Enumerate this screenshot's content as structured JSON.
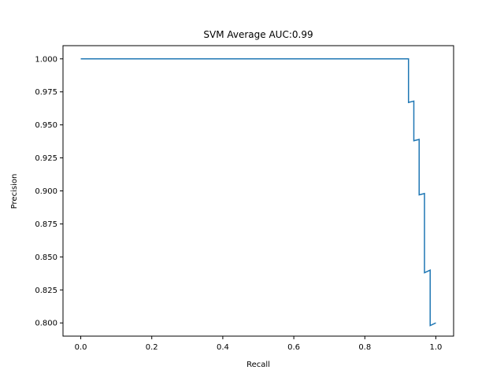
{
  "chart_data": {
    "type": "line",
    "title": "SVM Average AUC:0.99",
    "xlabel": "Recall",
    "ylabel": "Precision",
    "xlim": [
      -0.05,
      1.05
    ],
    "ylim": [
      0.79,
      1.01
    ],
    "x_ticks": [
      0.0,
      0.2,
      0.4,
      0.6,
      0.8,
      1.0
    ],
    "y_ticks": [
      0.8,
      0.825,
      0.85,
      0.875,
      0.9,
      0.925,
      0.95,
      0.975,
      1.0
    ],
    "x_tick_labels": [
      "0.0",
      "0.2",
      "0.4",
      "0.6",
      "0.8",
      "1.0"
    ],
    "y_tick_labels": [
      "0.800",
      "0.825",
      "0.850",
      "0.875",
      "0.900",
      "0.925",
      "0.950",
      "0.975",
      "1.000"
    ],
    "grid": false,
    "legend": null,
    "line_color": "#1f77b4",
    "series": [
      {
        "x": [
          0.0,
          0.923,
          0.923,
          0.938,
          0.938,
          0.953,
          0.953,
          0.968,
          0.968,
          0.984,
          0.984,
          1.0
        ],
        "y": [
          1.0,
          1.0,
          0.967,
          0.968,
          0.938,
          0.939,
          0.897,
          0.898,
          0.838,
          0.84,
          0.798,
          0.8
        ]
      }
    ]
  }
}
